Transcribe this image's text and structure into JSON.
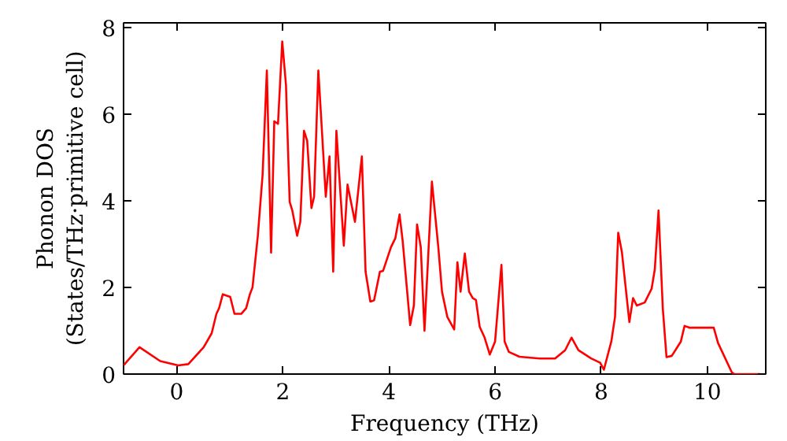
{
  "chart_data": {
    "type": "line",
    "xlabel": "Frequency (THz)",
    "ylabel": "Phonon DOS\n(States/THz·primitive cell)",
    "xlim": [
      -1,
      11.1
    ],
    "ylim": [
      0,
      8.1
    ],
    "xticks": [
      0,
      2,
      4,
      6,
      8,
      10
    ],
    "yticks": [
      0,
      2,
      4,
      6,
      8
    ],
    "grid": false,
    "marker": "none",
    "line_style": "solid",
    "series": [
      {
        "color": "#ff0000",
        "x": [
          -1.0,
          -0.7,
          -0.31,
          0.03,
          0.22,
          0.51,
          0.66,
          0.75,
          0.8,
          0.87,
          1.01,
          1.09,
          1.22,
          1.31,
          1.38,
          1.43,
          1.53,
          1.62,
          1.7,
          1.78,
          1.84,
          1.91,
          1.99,
          2.06,
          2.13,
          2.18,
          2.27,
          2.33,
          2.4,
          2.46,
          2.54,
          2.59,
          2.67,
          2.73,
          2.81,
          2.88,
          2.95,
          3.01,
          3.15,
          3.22,
          3.36,
          3.49,
          3.56,
          3.65,
          3.72,
          3.83,
          3.89,
          4.04,
          4.12,
          4.2,
          4.26,
          4.4,
          4.47,
          4.53,
          4.6,
          4.67,
          4.81,
          4.93,
          5.0,
          5.1,
          5.23,
          5.29,
          5.35,
          5.43,
          5.51,
          5.58,
          5.64,
          5.71,
          5.8,
          5.9,
          6.0,
          6.12,
          6.18,
          6.26,
          6.46,
          6.84,
          7.13,
          7.32,
          7.44,
          7.57,
          7.81,
          7.98,
          8.05,
          8.19,
          8.26,
          8.32,
          8.39,
          8.53,
          8.6,
          8.67,
          8.82,
          8.95,
          9.01,
          9.08,
          9.16,
          9.23,
          9.33,
          9.5,
          9.57,
          9.66,
          10.12,
          10.2,
          10.46,
          10.51,
          11.0
        ],
        "values": [
          0.2,
          0.62,
          0.3,
          0.2,
          0.23,
          0.62,
          0.94,
          1.39,
          1.52,
          1.84,
          1.78,
          1.39,
          1.39,
          1.52,
          1.84,
          2.0,
          3.19,
          4.6,
          7.0,
          2.8,
          5.83,
          5.77,
          7.67,
          6.67,
          3.97,
          3.77,
          3.19,
          3.51,
          5.61,
          5.38,
          3.83,
          4.09,
          7.0,
          5.77,
          4.09,
          5.02,
          2.36,
          5.61,
          2.96,
          4.37,
          3.51,
          5.02,
          2.36,
          1.67,
          1.7,
          2.36,
          2.38,
          2.93,
          3.13,
          3.68,
          3.06,
          1.13,
          1.58,
          3.45,
          2.93,
          1.0,
          4.44,
          2.93,
          1.9,
          1.32,
          1.03,
          2.58,
          1.9,
          2.78,
          1.9,
          1.75,
          1.71,
          1.09,
          0.85,
          0.45,
          0.75,
          2.52,
          0.75,
          0.51,
          0.4,
          0.36,
          0.36,
          0.55,
          0.84,
          0.55,
          0.36,
          0.26,
          0.1,
          0.75,
          1.32,
          3.26,
          2.81,
          1.2,
          1.75,
          1.58,
          1.65,
          1.97,
          2.42,
          3.77,
          1.52,
          0.39,
          0.42,
          0.75,
          1.11,
          1.07,
          1.07,
          0.72,
          0.04,
          0,
          0
        ]
      }
    ]
  }
}
